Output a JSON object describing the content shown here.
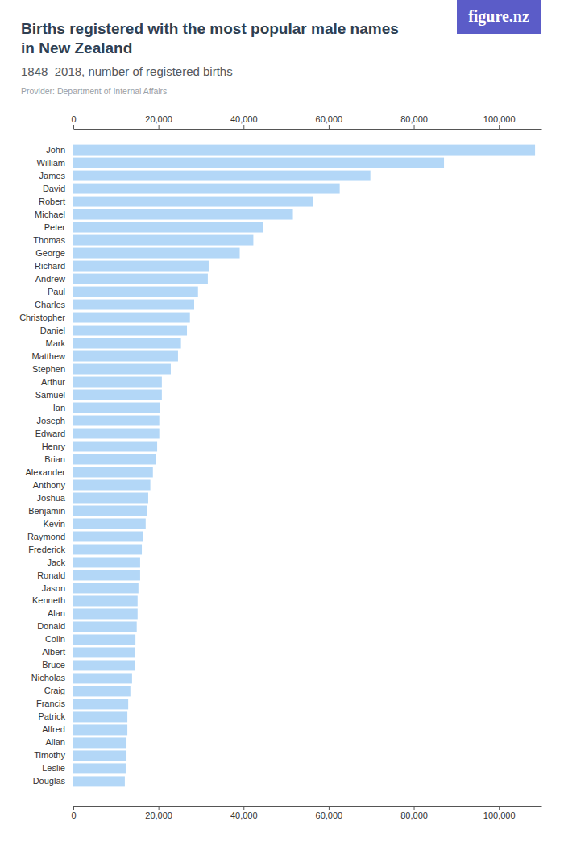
{
  "chart_data": {
    "type": "bar",
    "orientation": "horizontal",
    "title": "Births registered with the most popular male names in New Zealand",
    "subtitle": "1848–2018, number of registered births",
    "annotations": [
      "Provider: Department of Internal Affairs",
      "figure.nz"
    ],
    "categories": [
      "John",
      "William",
      "James",
      "David",
      "Robert",
      "Michael",
      "Peter",
      "Thomas",
      "George",
      "Richard",
      "Andrew",
      "Paul",
      "Charles",
      "Christopher",
      "Daniel",
      "Mark",
      "Matthew",
      "Stephen",
      "Arthur",
      "Samuel",
      "Ian",
      "Joseph",
      "Edward",
      "Henry",
      "Brian",
      "Alexander",
      "Anthony",
      "Joshua",
      "Benjamin",
      "Kevin",
      "Raymond",
      "Frederick",
      "Jack",
      "Ronald",
      "Jason",
      "Kenneth",
      "Alan",
      "Donald",
      "Colin",
      "Albert",
      "Bruce",
      "Nicholas",
      "Craig",
      "Francis",
      "Patrick",
      "Alfred",
      "Allan",
      "Timothy",
      "Leslie",
      "Douglas"
    ],
    "values": [
      108500,
      87100,
      69800,
      62600,
      56300,
      51600,
      44600,
      42300,
      39100,
      31800,
      31600,
      29300,
      28400,
      27400,
      26700,
      25300,
      24600,
      22900,
      20800,
      20800,
      20400,
      20200,
      20200,
      19700,
      19500,
      18700,
      18100,
      17600,
      17400,
      17000,
      16400,
      16100,
      15700,
      15700,
      15300,
      15100,
      15100,
      14900,
      14600,
      14400,
      14400,
      13800,
      13400,
      12900,
      12700,
      12700,
      12500,
      12500,
      12300,
      12100
    ],
    "color": "#b3d7f7",
    "xlim": [
      0,
      110000
    ],
    "xticks": [
      0,
      {
        "value": 20000,
        "label": "20,000"
      },
      {
        "value": 40000,
        "label": "40,000"
      },
      {
        "value": 60000,
        "label": "60,000"
      },
      {
        "value": 80000,
        "label": "80,000"
      },
      {
        "value": 100000,
        "label": "100,000"
      }
    ],
    "grid": false
  }
}
